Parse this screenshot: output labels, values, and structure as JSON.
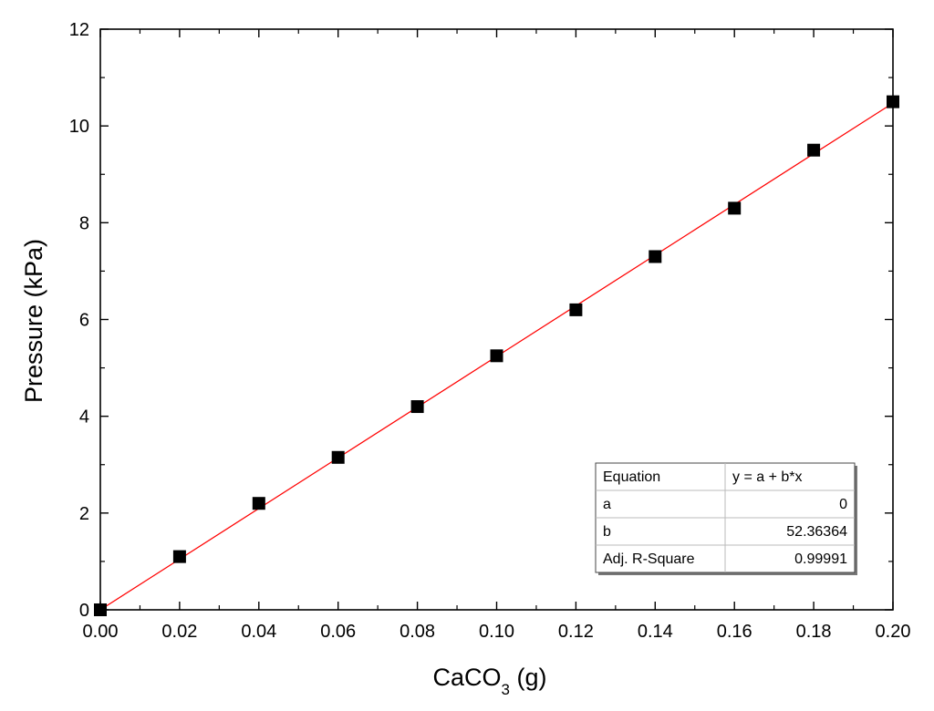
{
  "chart_data": {
    "type": "scatter",
    "xlabel": {
      "base": "CaCO",
      "subscript": "3",
      "suffix": " (g)"
    },
    "ylabel": "Pressure (kPa)",
    "xlim": [
      0,
      0.2
    ],
    "ylim": [
      0,
      12
    ],
    "x_ticks": [
      0,
      0.02,
      0.04,
      0.06,
      0.08,
      0.1,
      0.12,
      0.14,
      0.16,
      0.18,
      0.2
    ],
    "x_tick_labels": [
      "0.00",
      "0.02",
      "0.04",
      "0.06",
      "0.08",
      "0.10",
      "0.12",
      "0.14",
      "0.16",
      "0.18",
      "0.20"
    ],
    "y_ticks": [
      0,
      2,
      4,
      6,
      8,
      10,
      12
    ],
    "y_tick_labels": [
      "0",
      "2",
      "4",
      "6",
      "8",
      "10",
      "12"
    ],
    "grid": false,
    "series": [
      {
        "marker": "square",
        "color": "#000000",
        "x": [
          0,
          0.02,
          0.04,
          0.06,
          0.08,
          0.1,
          0.12,
          0.14,
          0.16,
          0.18,
          0.2
        ],
        "y": [
          0,
          1.1,
          2.2,
          3.15,
          4.2,
          5.25,
          6.2,
          7.3,
          8.3,
          9.5,
          10.5
        ]
      }
    ],
    "fit_line": {
      "color": "#ff0000",
      "intercept": 0,
      "slope": 52.36364
    },
    "fit_table": {
      "placement": "bottom-right",
      "rows": [
        [
          "Equation",
          "y = a + b*x"
        ],
        [
          "a",
          "0"
        ],
        [
          "b",
          "52.36364"
        ],
        [
          "Adj. R-Square",
          "0.99991"
        ]
      ]
    }
  }
}
